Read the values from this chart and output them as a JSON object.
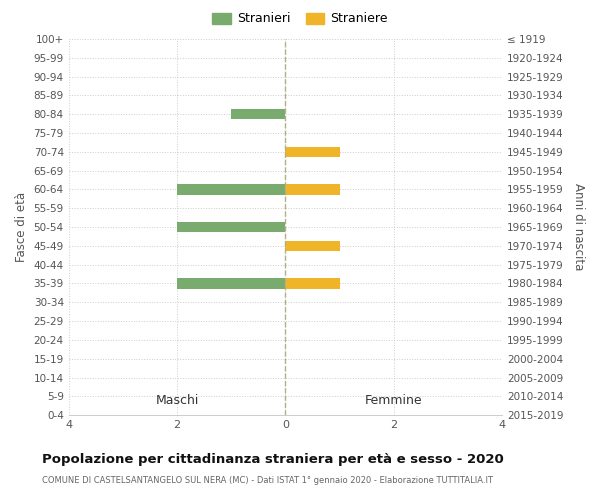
{
  "age_groups": [
    "100+",
    "95-99",
    "90-94",
    "85-89",
    "80-84",
    "75-79",
    "70-74",
    "65-69",
    "60-64",
    "55-59",
    "50-54",
    "45-49",
    "40-44",
    "35-39",
    "30-34",
    "25-29",
    "20-24",
    "15-19",
    "10-14",
    "5-9",
    "0-4"
  ],
  "birth_years": [
    "≤ 1919",
    "1920-1924",
    "1925-1929",
    "1930-1934",
    "1935-1939",
    "1940-1944",
    "1945-1949",
    "1950-1954",
    "1955-1959",
    "1960-1964",
    "1965-1969",
    "1970-1974",
    "1975-1979",
    "1980-1984",
    "1985-1989",
    "1990-1994",
    "1995-1999",
    "2000-2004",
    "2005-2009",
    "2010-2014",
    "2015-2019"
  ],
  "maschi_stranieri": [
    0,
    0,
    0,
    0,
    1,
    0,
    0,
    0,
    2,
    0,
    2,
    0,
    0,
    2,
    0,
    0,
    0,
    0,
    0,
    0,
    0
  ],
  "femmine_straniere": [
    0,
    0,
    0,
    0,
    0,
    0,
    1,
    0,
    1,
    0,
    0,
    1,
    0,
    1,
    0,
    0,
    0,
    0,
    0,
    0,
    0
  ],
  "color_maschi": "#7aab6e",
  "color_femmine": "#f0b429",
  "xlim": 4,
  "title": "Popolazione per cittadinanza straniera per età e sesso - 2020",
  "subtitle": "COMUNE DI CASTELSANTANGELO SUL NERA (MC) - Dati ISTAT 1° gennaio 2020 - Elaborazione TUTTITALIA.IT",
  "ylabel_left": "Fasce di età",
  "ylabel_right": "Anni di nascita",
  "header_left": "Maschi",
  "header_right": "Femmine",
  "legend_maschi": "Stranieri",
  "legend_femmine": "Straniere",
  "bg_color": "#ffffff",
  "grid_color": "#cccccc",
  "bar_height": 0.55
}
